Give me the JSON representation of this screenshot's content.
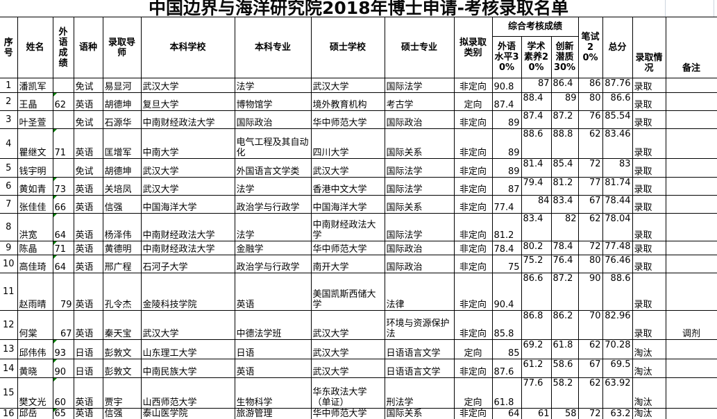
{
  "title": "中国边界与海洋研究院2018年博士申请-考核录取名单",
  "colors": {
    "title_text": "#0a0a0a",
    "table_border": "#000000",
    "text_flag_triangle": "#008000",
    "faint_gridline": "#ccd4de",
    "background": "#ffffff"
  },
  "header": {
    "no": "序号",
    "name": "姓名",
    "foreign_score": "外语成绩",
    "language": "语种",
    "supervisor": "录取导师",
    "undergrad_school": "本科学校",
    "undergrad_major": "本科专业",
    "masters_school": "硕士学校",
    "masters_major": "硕士专业",
    "category": "拟录取类别",
    "composite_group": "综合考核成绩",
    "s1": "外语水平30%",
    "s2": "学术素养20%",
    "s3": "创新潜质30%",
    "written": "笔试20%",
    "total": "总分",
    "admission": "录取情况",
    "remark": "备注"
  },
  "rows": [
    {
      "no": "1",
      "name": "潘凯军",
      "foreign_score": "",
      "flagged": false,
      "language": "免试",
      "supervisor": "易显河",
      "undergrad_school": "武汉大学",
      "undergrad_major": "法学",
      "masters_school": "武汉大学",
      "masters_major": "国际法学",
      "category": "非定向",
      "s1": "90.8",
      "s2": "87",
      "s3": "86.4",
      "written": "86",
      "total": "87.76",
      "admission": "录取",
      "remark": ""
    },
    {
      "no": "2",
      "name": "王晶",
      "foreign_score": "62",
      "flagged": true,
      "language": "英语",
      "supervisor": "胡德坤",
      "undergrad_school": "复旦大学",
      "undergrad_major": "博物馆学",
      "masters_school": "境外教育机构",
      "masters_major": "考古学",
      "category": "定向",
      "s1": "87.4",
      "s2": "88.4",
      "s3": "89",
      "written": "80",
      "total": "86.6",
      "admission": "录取",
      "remark": ""
    },
    {
      "no": "3",
      "name": "叶圣萱",
      "foreign_score": "",
      "flagged": false,
      "language": "免试",
      "supervisor": "石源华",
      "undergrad_school": "中南财经政法大学",
      "undergrad_major": "国际政治",
      "masters_school": "华中师范大学",
      "masters_major": "国际政治",
      "category": "非定向",
      "s1": "89",
      "s2": "87.4",
      "s3": "87.2",
      "written": "76",
      "total": "85.54",
      "admission": "录取",
      "remark": ""
    },
    {
      "no": "4",
      "name": "瞿继文",
      "foreign_score": "71",
      "flagged": true,
      "language": "英语",
      "supervisor": "匡增军",
      "undergrad_school": "中南大学",
      "undergrad_major": "电气工程及其自动化",
      "masters_school": "四川大学",
      "masters_major": "国际关系",
      "category": "非定向",
      "s1": "89",
      "s2": "88.6",
      "s3": "88.8",
      "written": "62",
      "total": "83.46",
      "admission": "录取",
      "remark": ""
    },
    {
      "no": "5",
      "name": "钱宇明",
      "foreign_score": "",
      "flagged": false,
      "language": "免试",
      "supervisor": "胡德坤",
      "undergrad_school": "武汉大学",
      "undergrad_major": "外国语言文学类",
      "masters_school": "武汉大学",
      "masters_major": "国际法学",
      "category": "非定向",
      "s1": "89",
      "s2": "81.4",
      "s3": "85.4",
      "written": "72",
      "total": "83",
      "admission": "录取",
      "remark": ""
    },
    {
      "no": "6",
      "name": "黄如青",
      "foreign_score": "73",
      "flagged": true,
      "language": "英语",
      "supervisor": "关培凤",
      "undergrad_school": "武汉大学",
      "undergrad_major": "法学",
      "masters_school": "香港中文大学",
      "masters_major": "国际法学",
      "category": "非定向",
      "s1": "87",
      "s2": "79.4",
      "s3": "81.2",
      "written": "77",
      "total": "81.74",
      "admission": "录取",
      "remark": ""
    },
    {
      "no": "7",
      "name": "张佳佳",
      "foreign_score": "66",
      "flagged": true,
      "language": "英语",
      "supervisor": "信强",
      "undergrad_school": "中国海洋大学",
      "undergrad_major": "政治学与行政学",
      "masters_school": "中国海洋大学",
      "masters_major": "国际关系",
      "category": "非定向",
      "s1": "77.4",
      "s2": "84",
      "s3": "83.4",
      "written": "67",
      "total": "78.44",
      "admission": "录取",
      "remark": ""
    },
    {
      "no": "8",
      "name": "洪宽",
      "foreign_score": "64",
      "flagged": true,
      "language": "英语",
      "supervisor": "杨泽伟",
      "undergrad_school": "中南财经政法大学",
      "undergrad_major": "法学",
      "masters_school": "中南财经政法大学",
      "masters_major": "国际法学",
      "category": "非定向",
      "s1": "81.2",
      "s2": "83.4",
      "s3": "82",
      "written": "62",
      "total": "78.04",
      "admission": "录取",
      "remark": ""
    },
    {
      "no": "9",
      "name": "陈晶",
      "foreign_score": "71",
      "flagged": true,
      "language": "英语",
      "supervisor": "黄德明",
      "undergrad_school": "中南财经政法大学",
      "undergrad_major": "金融学",
      "masters_school": "华中师范大学",
      "masters_major": "国际政治",
      "category": "非定向",
      "s1": "78.4",
      "s2": "80.2",
      "s3": "78.4",
      "written": "72",
      "total": "77.48",
      "admission": "录取",
      "remark": ""
    },
    {
      "no": "10",
      "name": "高佳琦",
      "foreign_score": "64",
      "flagged": true,
      "language": "英语",
      "supervisor": "邢广程",
      "undergrad_school": "石河子大学",
      "undergrad_major": "政治学与行政学",
      "masters_school": "南开大学",
      "masters_major": "国际政治",
      "category": "非定向",
      "s1": "75",
      "s2": "75.2",
      "s3": "76.4",
      "written": "80",
      "total": "76.46",
      "admission": "录取",
      "remark": ""
    },
    {
      "no": "11",
      "name": "赵雨晴",
      "foreign_score": "79",
      "flagged": false,
      "language": "英语",
      "supervisor": "孔令杰",
      "undergrad_school": "金陵科技学院",
      "undergrad_major": "英语",
      "masters_school": "美国凯斯西储大学",
      "masters_major": "法律",
      "category": "非定向",
      "s1": "90.4",
      "s2": "86.6",
      "s3": "87.2",
      "written": "90",
      "total": "88.6",
      "admission": "录取",
      "remark": ""
    },
    {
      "no": "12",
      "name": "何棠",
      "foreign_score": "67",
      "flagged": false,
      "language": "英语",
      "supervisor": "秦天宝",
      "undergrad_school": "武汉大学",
      "undergrad_major": "中德法学班",
      "masters_school": "武汉大学",
      "masters_major": "环境与资源保护法",
      "category": "非定向",
      "s1": "85.8",
      "s2": "86.8",
      "s3": "86.2",
      "written": "70",
      "total": "82.96",
      "admission": "录取",
      "remark": "调剂"
    },
    {
      "no": "13",
      "name": "邱伟伟",
      "foreign_score": "93",
      "flagged": true,
      "language": "日语",
      "supervisor": "彭敦文",
      "undergrad_school": "山东理工大学",
      "undergrad_major": "日语",
      "masters_school": "武汉大学",
      "masters_major": "日语语言文学",
      "category": "定向",
      "s1": "85",
      "s2": "69.2",
      "s3": "61.8",
      "written": "62",
      "total": "70.28",
      "admission": "淘汰",
      "remark": ""
    },
    {
      "no": "14",
      "name": "黄晓",
      "foreign_score": "90",
      "flagged": true,
      "language": "日语",
      "supervisor": "彭敦文",
      "undergrad_school": "中南民族大学",
      "undergrad_major": "英语",
      "masters_school": "武汉大学",
      "masters_major": "日语语言文学",
      "category": "非定向",
      "s1": "87.6",
      "s2": "61.2",
      "s3": "58.6",
      "written": "67",
      "total": "69.5",
      "admission": "淘汰",
      "remark": ""
    },
    {
      "no": "15",
      "name": "樊文光",
      "foreign_score": "60",
      "flagged": true,
      "language": "英语",
      "supervisor": "贾宇",
      "undergrad_school": "山西师范大学",
      "undergrad_major": "生物科学",
      "masters_school": "华东政法大学（单证）",
      "masters_major": "刑法学",
      "category": "定向",
      "s1": "61.8",
      "s2": "77.6",
      "s3": "58.2",
      "written": "62",
      "total": "63.92",
      "admission": "淘汰",
      "remark": ""
    },
    {
      "no": "16",
      "name": "邱岳",
      "foreign_score": "65",
      "flagged": true,
      "language": "英语",
      "supervisor": "信强",
      "undergrad_school": "泰山医学院",
      "undergrad_major": "旅游管理",
      "masters_school": "华中师范大学",
      "masters_major": "国际关系",
      "category": "非定向",
      "s1": "64",
      "s2": "61",
      "s3": "58",
      "written": "72",
      "total": "63.2",
      "admission": "淘汰",
      "remark": ""
    }
  ]
}
